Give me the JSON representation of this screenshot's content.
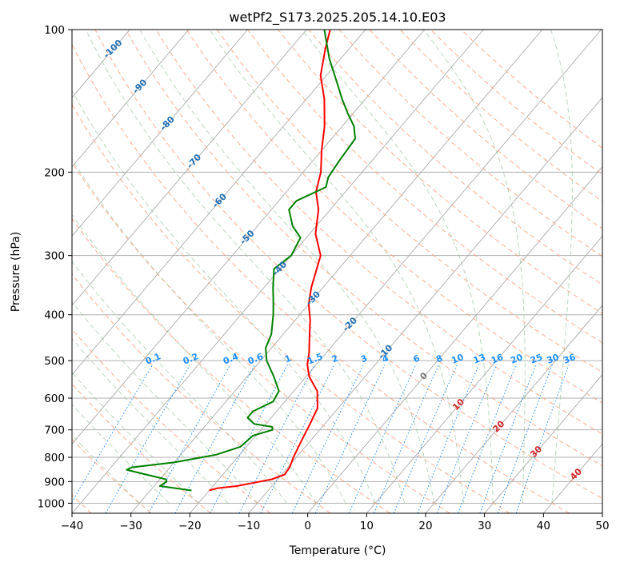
{
  "chart_data": {
    "type": "line",
    "subtype": "skew-t log-p diagram",
    "title": "wetPf2_S173.2025.205.14.10.E03",
    "xlabel": "Temperature (°C)",
    "ylabel": "Pressure (hPa)",
    "xlim": [
      -40,
      50
    ],
    "ylim": [
      1050,
      100
    ],
    "y_scale": "log",
    "grid": true,
    "x_ticks": [
      -40,
      -30,
      -20,
      -10,
      0,
      10,
      20,
      30,
      40,
      50
    ],
    "x_tick_labels": [
      "−40",
      "−30",
      "−20",
      "−10",
      "0",
      "10",
      "20",
      "30",
      "40",
      "50"
    ],
    "y_ticks": [
      100,
      200,
      300,
      400,
      500,
      600,
      700,
      800,
      900,
      1000
    ],
    "y_tick_labels": [
      "100",
      "200",
      "300",
      "400",
      "500",
      "600",
      "700",
      "800",
      "900",
      "1000"
    ],
    "colors": {
      "temperature": "#ff0000",
      "dewpoint": "#008000",
      "isotherm": "#aaaaaa",
      "dry_adiabat": "#ffa07a",
      "moist_adiabat": "#8fbc8f",
      "mixing_ratio": "#1e90ff",
      "dry_adiabat_label": "#d62728",
      "mixing_ratio_label": "#1e90ff",
      "isotherm_label": "#1f6fb4"
    },
    "series": [
      {
        "name": "",
        "role": "temperature",
        "points": [
          {
            "t": -20.0,
            "p": 940
          },
          {
            "t": -19.0,
            "p": 930
          },
          {
            "t": -16.0,
            "p": 920
          },
          {
            "t": -13.5,
            "p": 905
          },
          {
            "t": -11.0,
            "p": 890
          },
          {
            "t": -9.5,
            "p": 870
          },
          {
            "t": -9.7,
            "p": 840
          },
          {
            "t": -10.5,
            "p": 800
          },
          {
            "t": -11.5,
            "p": 740
          },
          {
            "t": -12.5,
            "p": 680
          },
          {
            "t": -13.5,
            "p": 630
          },
          {
            "t": -16.0,
            "p": 580
          },
          {
            "t": -19.5,
            "p": 540
          },
          {
            "t": -21.5,
            "p": 510
          },
          {
            "t": -23.0,
            "p": 480
          },
          {
            "t": -25.5,
            "p": 440
          },
          {
            "t": -27.5,
            "p": 410
          },
          {
            "t": -30.0,
            "p": 380
          },
          {
            "t": -32.0,
            "p": 350
          },
          {
            "t": -35.0,
            "p": 300
          },
          {
            "t": -39.0,
            "p": 270
          },
          {
            "t": -42.0,
            "p": 240
          },
          {
            "t": -45.0,
            "p": 220
          },
          {
            "t": -47.0,
            "p": 200
          },
          {
            "t": -50.0,
            "p": 180
          },
          {
            "t": -53.0,
            "p": 160
          },
          {
            "t": -57.0,
            "p": 140
          },
          {
            "t": -61.0,
            "p": 125
          },
          {
            "t": -64.0,
            "p": 110
          },
          {
            "t": -66.0,
            "p": 100
          }
        ]
      },
      {
        "name": "",
        "role": "dewpoint",
        "points": [
          {
            "t": -23.0,
            "p": 940
          },
          {
            "t": -29.0,
            "p": 920
          },
          {
            "t": -28.5,
            "p": 900
          },
          {
            "t": -29.0,
            "p": 890
          },
          {
            "t": -33.0,
            "p": 870
          },
          {
            "t": -37.0,
            "p": 850
          },
          {
            "t": -36.5,
            "p": 840
          },
          {
            "t": -30.0,
            "p": 820
          },
          {
            "t": -24.0,
            "p": 790
          },
          {
            "t": -21.0,
            "p": 760
          },
          {
            "t": -20.5,
            "p": 720
          },
          {
            "t": -18.0,
            "p": 700
          },
          {
            "t": -18.5,
            "p": 690
          },
          {
            "t": -22.0,
            "p": 680
          },
          {
            "t": -24.0,
            "p": 660
          },
          {
            "t": -24.0,
            "p": 640
          },
          {
            "t": -22.0,
            "p": 610
          },
          {
            "t": -22.5,
            "p": 580
          },
          {
            "t": -25.5,
            "p": 540
          },
          {
            "t": -29.0,
            "p": 500
          },
          {
            "t": -31.0,
            "p": 470
          },
          {
            "t": -32.0,
            "p": 440
          },
          {
            "t": -34.5,
            "p": 400
          },
          {
            "t": -36.0,
            "p": 380
          },
          {
            "t": -38.5,
            "p": 350
          },
          {
            "t": -41.0,
            "p": 320
          },
          {
            "t": -40.0,
            "p": 300
          },
          {
            "t": -41.0,
            "p": 275
          },
          {
            "t": -44.0,
            "p": 260
          },
          {
            "t": -47.0,
            "p": 240
          },
          {
            "t": -47.0,
            "p": 230
          },
          {
            "t": -44.0,
            "p": 215
          },
          {
            "t": -45.0,
            "p": 205
          },
          {
            "t": -45.5,
            "p": 190
          },
          {
            "t": -46.0,
            "p": 170
          },
          {
            "t": -48.0,
            "p": 160
          },
          {
            "t": -51.0,
            "p": 150
          },
          {
            "t": -54.0,
            "p": 140
          },
          {
            "t": -57.0,
            "p": 130
          },
          {
            "t": -62.0,
            "p": 115
          },
          {
            "t": -67.0,
            "p": 100
          }
        ]
      }
    ],
    "isotherm_labels": [
      {
        "text": "-100",
        "t": -100,
        "p": 110
      },
      {
        "text": "-90",
        "t": -90,
        "p": 132
      },
      {
        "text": "-80",
        "t": -80,
        "p": 158
      },
      {
        "text": "-70",
        "t": -70,
        "p": 190
      },
      {
        "text": "-60",
        "t": -60,
        "p": 230
      },
      {
        "text": "-50",
        "t": -50,
        "p": 275
      },
      {
        "text": "-40",
        "t": -40,
        "p": 320
      },
      {
        "text": "-30",
        "t": -30,
        "p": 370
      },
      {
        "text": "-20",
        "t": -20,
        "p": 420
      },
      {
        "text": "-10",
        "t": -10,
        "p": 480
      },
      {
        "text": "0",
        "t": 0,
        "p": 540
      },
      {
        "text": "10",
        "t": 10,
        "p": 620
      },
      {
        "text": "20",
        "t": 20,
        "p": 690
      },
      {
        "text": "30",
        "t": 30,
        "p": 780
      },
      {
        "text": "40",
        "t": 40,
        "p": 870
      }
    ],
    "mixing_ratio_labels": [
      "0.1",
      "0.2",
      "0.4",
      "0.6",
      "1",
      "1.5",
      "2",
      "3",
      "4",
      "6",
      "8",
      "10",
      "13",
      "16",
      "20",
      "25",
      "30",
      "36"
    ]
  }
}
